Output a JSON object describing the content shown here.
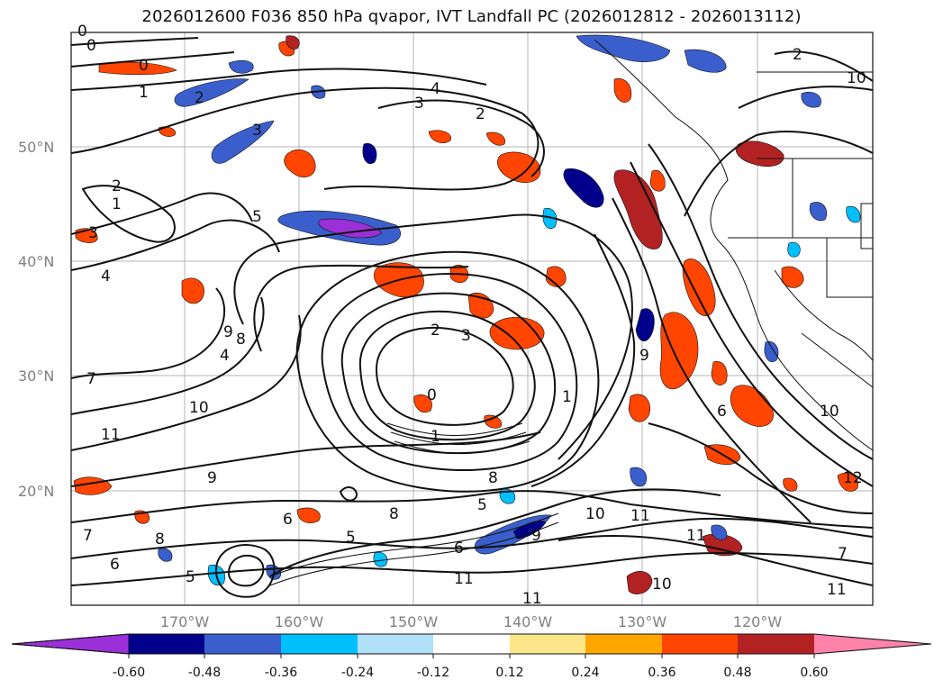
{
  "title": "2026012600 F036 850 hPa qvapor, IVT Landfall PC (2026012812 - 2026013112)",
  "map": {
    "lat_labels": [
      "50°N",
      "40°N",
      "30°N",
      "20°N"
    ],
    "lon_labels": [
      "170°W",
      "160°W",
      "150°W",
      "140°W",
      "130°W",
      "120°W"
    ],
    "contour_labels": [
      "0",
      "0",
      "1",
      "2",
      "3",
      "4",
      "3",
      "2",
      "5",
      "2",
      "1",
      "3",
      "4",
      "9",
      "8",
      "4",
      "7",
      "10",
      "11",
      "9",
      "6",
      "7",
      "8",
      "5",
      "6",
      "5",
      "2",
      "1",
      "0",
      "3",
      "8",
      "5",
      "6",
      "10",
      "11",
      "11",
      "10",
      "11",
      "11",
      "8",
      "9",
      "6",
      "7",
      "9",
      "10",
      "11",
      "12",
      "2",
      "10",
      "1",
      "0"
    ]
  },
  "colorbar": {
    "ticks": [
      "-0.60",
      "-0.48",
      "-0.36",
      "-0.24",
      "-0.12",
      "0.12",
      "0.24",
      "0.36",
      "0.48",
      "0.60"
    ],
    "colors": [
      "#9b30d9",
      "#00008b",
      "#3a5fcd",
      "#00bfff",
      "#afe0f8",
      "#ffffff",
      "#fde68a",
      "#ffa500",
      "#ff4500",
      "#b22222",
      "#ff82ab"
    ]
  }
}
